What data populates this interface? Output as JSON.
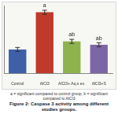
{
  "chart_data": {
    "type": "bar",
    "title": "Figure 2: Caspase 3 activity among different studies groups.",
    "subtitle": "a = significant compared to control group, b = significant compared to AlCl3",
    "categories": [
      "Control",
      "AlCl3",
      "AlCl3+ Aq.s ex.",
      "AlCl3+S"
    ],
    "values": [
      35,
      90,
      47,
      42
    ],
    "errors": [
      3,
      3,
      3,
      3
    ],
    "colors": [
      "#3f5fa8",
      "#c0392b",
      "#8fb34c",
      "#7d66a6"
    ],
    "annotations": [
      {
        "category": "AlCl3",
        "text": "a"
      },
      {
        "category": "AlCl3+ Aq.s ex.",
        "text": "ab"
      },
      {
        "category": "AlCl3+S",
        "text": "ab"
      }
    ],
    "ylim": [
      0,
      100
    ],
    "grid": false,
    "tick_labels": "x"
  }
}
